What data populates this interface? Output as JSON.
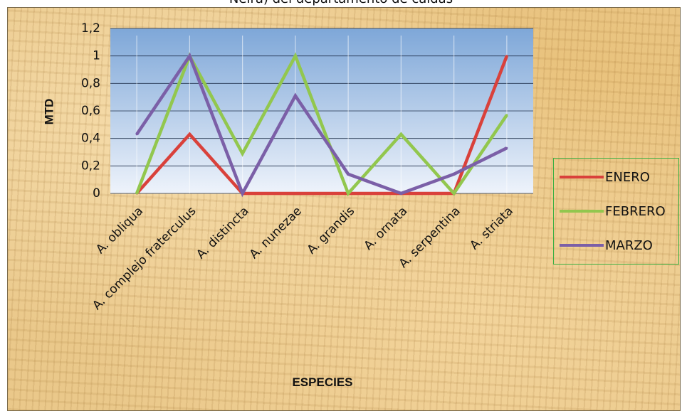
{
  "chart_data": {
    "type": "line",
    "title": "Neira) del departamento de caldas",
    "xlabel": "ESPECIES",
    "ylabel": "MTD",
    "ylim": [
      0,
      1.2
    ],
    "yticks": [
      "0",
      "0,2",
      "0,4",
      "0,6",
      "0,8",
      "1",
      "1,2"
    ],
    "categories": [
      "A. obliqua",
      "A. complejo fraterculus",
      "A. distincta",
      "A. nunezae",
      "A. grandis",
      "A. ornata",
      "A. serpentina",
      "A. striata"
    ],
    "series": [
      {
        "name": "ENERO",
        "color": "#d9413b",
        "values": [
          0,
          0.43,
          0,
          0,
          0,
          0,
          0,
          1.0
        ]
      },
      {
        "name": "FEBRERO",
        "color": "#92c74e",
        "values": [
          0,
          1.0,
          0.29,
          1.0,
          0,
          0.43,
          0,
          0.57
        ]
      },
      {
        "name": "MARZO",
        "color": "#7b5fa7",
        "values": [
          0.43,
          1.0,
          0,
          0.71,
          0.14,
          0,
          0.14,
          0.33
        ]
      }
    ],
    "grid": true,
    "legend_position": "right",
    "plot_background": [
      "#7ea7d8",
      "#eef3fb"
    ]
  }
}
